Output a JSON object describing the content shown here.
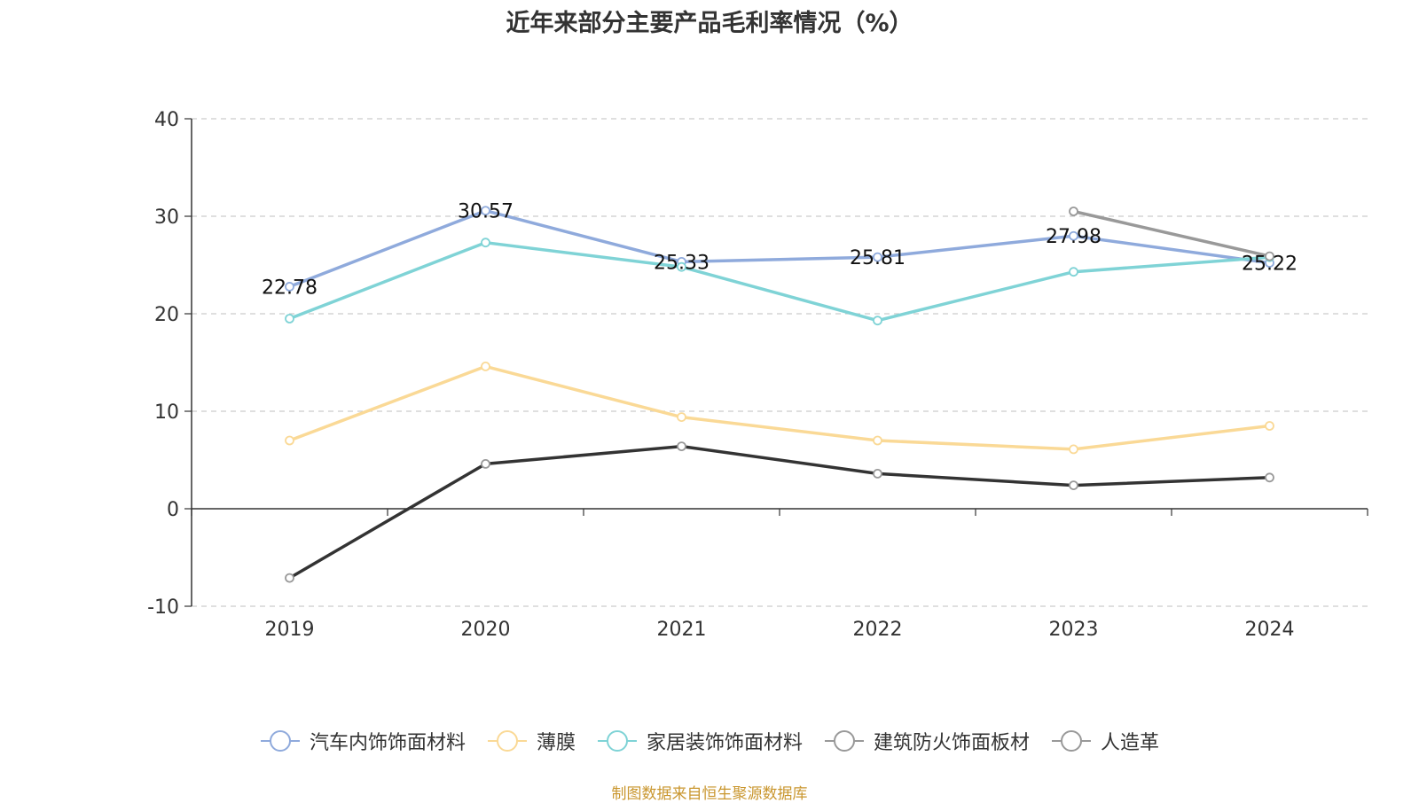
{
  "chart_data": {
    "type": "line",
    "title": "近年来部分主要产品毛利率情况（%）",
    "categories": [
      "2019",
      "2020",
      "2021",
      "2022",
      "2023",
      "2024"
    ],
    "ylim": [
      -10,
      40
    ],
    "yticks": [
      -10,
      0,
      10,
      20,
      30,
      40
    ],
    "grid": true,
    "legend_position": "bottom",
    "series": [
      {
        "name": "汽车内饰饰面材料",
        "color": "#8faadc",
        "values": [
          22.78,
          30.57,
          25.33,
          25.81,
          27.98,
          25.22
        ],
        "labels": [
          "22.78",
          "30.57",
          "25.33",
          "25.81",
          "27.98",
          "25.22"
        ]
      },
      {
        "name": "薄膜",
        "color": "#fad996",
        "values": [
          7.0,
          14.6,
          9.4,
          7.0,
          6.1,
          8.5
        ]
      },
      {
        "name": "家居装饰饰面材料",
        "color": "#7fd3d6",
        "values": [
          19.5,
          27.3,
          24.8,
          19.3,
          24.3,
          25.8
        ]
      },
      {
        "name": "建筑防火饰面板材",
        "color": "#999999",
        "values": [
          null,
          null,
          null,
          null,
          30.5,
          25.9
        ]
      },
      {
        "name": "人造革",
        "color": "#333333",
        "marker_color": "#999999",
        "values": [
          -7.1,
          4.6,
          6.4,
          3.6,
          2.4,
          3.2
        ]
      }
    ]
  },
  "source_note": "制图数据来自恒生聚源数据库"
}
